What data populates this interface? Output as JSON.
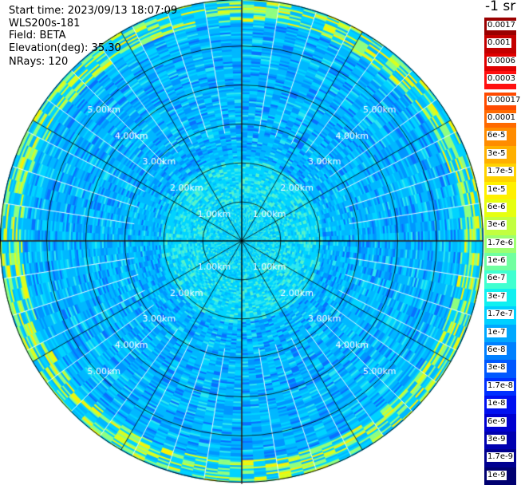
{
  "info": {
    "start_time": "Start time: 2023/09/13 18:07:09",
    "instrument": "WLS200s-181",
    "field": "Field: BETA",
    "elevation": "Elevation(deg): 35.30",
    "nrays": "NRays: 120"
  },
  "colorbar": {
    "unit_title": "-1 sr",
    "upper_block": [
      {
        "label": "0.0017",
        "color": "#9a0000"
      },
      {
        "label": "0.001",
        "color": "#c40000"
      },
      {
        "label": "0.0006",
        "color": "#e00000"
      },
      {
        "label": "0.0003",
        "color": "#ff1010"
      }
    ],
    "lower_block": [
      {
        "label": "0.00017",
        "color": "#ff4a00"
      },
      {
        "label": "0.0001",
        "color": "#ff6a00"
      },
      {
        "label": "6e-5",
        "color": "#ff8c00"
      },
      {
        "label": "3e-5",
        "color": "#ffb000"
      },
      {
        "label": "1.7e-5",
        "color": "#ffd200"
      },
      {
        "label": "1e-5",
        "color": "#fff000"
      },
      {
        "label": "6e-6",
        "color": "#e6ff10"
      },
      {
        "label": "3e-6",
        "color": "#c2ff40"
      },
      {
        "label": "1.7e-6",
        "color": "#9cff70"
      },
      {
        "label": "1e-6",
        "color": "#70ffa0"
      },
      {
        "label": "6e-7",
        "color": "#40ffd0"
      },
      {
        "label": "3e-7",
        "color": "#10f0f0"
      },
      {
        "label": "1.7e-7",
        "color": "#00d0ff"
      },
      {
        "label": "1e-7",
        "color": "#00a8ff"
      },
      {
        "label": "6e-8",
        "color": "#0080ff"
      },
      {
        "label": "3e-8",
        "color": "#0058ff"
      },
      {
        "label": "1.7e-8",
        "color": "#0030ff"
      },
      {
        "label": "1e-8",
        "color": "#0010f0"
      },
      {
        "label": "6e-9",
        "color": "#0000d0"
      },
      {
        "label": "3e-9",
        "color": "#0000b0"
      },
      {
        "label": "1.7e-9",
        "color": "#000090"
      },
      {
        "label": "1e-9",
        "color": "#000070"
      }
    ]
  },
  "range_rings": {
    "labels_km": [
      "1.00km",
      "2.00km",
      "3.00km",
      "4.00km",
      "5.00km"
    ],
    "ring_km": [
      1,
      2,
      3,
      4,
      5
    ],
    "max_range_km": 6.2
  },
  "scan": {
    "nrays": 120,
    "spoke_count": 12,
    "palette": [
      "#00b8ff",
      "#0096ff",
      "#0a70ff",
      "#00d4ff",
      "#2ee8f0",
      "#58f4c8",
      "#90ff80",
      "#d8ff20",
      "#fff000"
    ],
    "color_scale": "logarithmic 1e-9 to 0.0017"
  }
}
